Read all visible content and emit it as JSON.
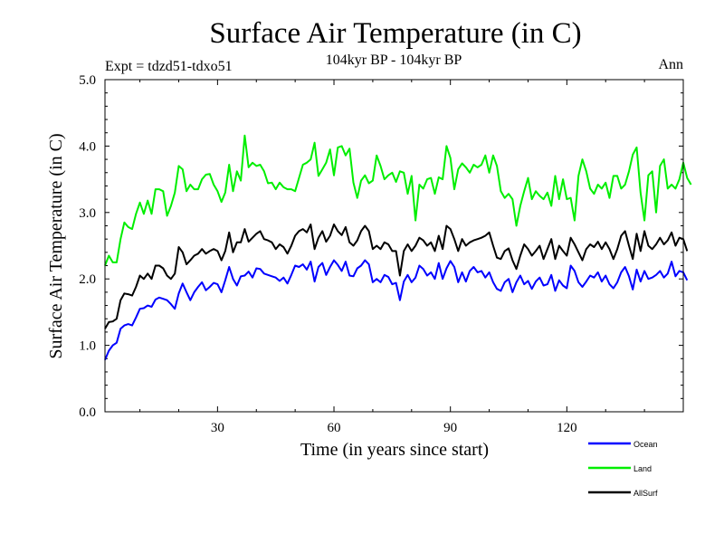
{
  "chart_data": {
    "type": "line",
    "title": "Surface Air Temperature (in C)",
    "subtitle": "104kyr BP - 104kyr BP",
    "experiment": "Expt = tdzd51-tdxo51",
    "season": "Ann",
    "xlabel": "Time (in years since start)",
    "ylabel": "Surface Air Temperature (in C)",
    "xlim": [
      1,
      150
    ],
    "ylim": [
      0,
      5
    ],
    "xticks": [
      30,
      60,
      90,
      120
    ],
    "xtick_labels": [
      "30",
      "60",
      "90",
      "120"
    ],
    "yticks": [
      0,
      1,
      2,
      3,
      4,
      5
    ],
    "ytick_labels": [
      "0.0",
      "1.0",
      "2.0",
      "3.0",
      "4.0",
      "5.0"
    ],
    "grid": false,
    "legend_position": "bottom-right",
    "series": [
      {
        "name": "Ocean",
        "color": "#0000ff",
        "values": [
          0.78,
          0.92,
          1.0,
          1.04,
          1.25,
          1.3,
          1.32,
          1.3,
          1.42,
          1.55,
          1.56,
          1.6,
          1.58,
          1.69,
          1.72,
          1.7,
          1.68,
          1.62,
          1.55,
          1.78,
          1.93,
          1.8,
          1.68,
          1.8,
          1.88,
          1.95,
          1.83,
          1.88,
          1.94,
          1.92,
          1.8,
          1.98,
          2.18,
          2.0,
          1.9,
          2.04,
          2.05,
          2.11,
          2.02,
          2.16,
          2.15,
          2.08,
          2.06,
          2.04,
          2.02,
          1.97,
          2.02,
          1.93,
          2.06,
          2.2,
          2.18,
          2.22,
          2.14,
          2.26,
          1.96,
          2.18,
          2.24,
          2.06,
          2.18,
          2.28,
          2.21,
          2.12,
          2.26,
          2.05,
          2.04,
          2.16,
          2.2,
          2.28,
          2.22,
          1.95,
          2.0,
          1.95,
          2.06,
          2.03,
          1.92,
          1.94,
          1.68,
          1.96,
          2.06,
          1.95,
          2.02,
          2.2,
          2.15,
          2.05,
          2.1,
          2.0,
          2.24,
          2.0,
          2.16,
          2.27,
          2.18,
          1.95,
          2.1,
          1.96,
          2.12,
          2.18,
          2.1,
          2.12,
          2.02,
          2.1,
          1.95,
          1.85,
          1.82,
          1.95,
          2.0,
          1.8,
          1.95,
          2.05,
          1.92,
          1.97,
          1.85,
          1.96,
          2.02,
          1.9,
          1.92,
          2.06,
          1.82,
          1.98,
          1.9,
          1.86,
          2.2,
          2.12,
          1.95,
          1.88,
          1.96,
          2.05,
          2.02,
          2.1,
          1.96,
          2.05,
          1.92,
          1.86,
          1.95,
          2.1,
          2.18,
          2.04,
          1.84,
          2.14,
          1.96,
          2.12,
          2.0,
          2.02,
          2.06,
          2.12,
          2.02,
          2.08,
          2.26,
          2.04,
          2.12,
          2.1,
          1.98
        ]
      },
      {
        "name": "Land",
        "color": "#00ee00",
        "values": [
          2.2,
          2.35,
          2.25,
          2.25,
          2.6,
          2.85,
          2.78,
          2.75,
          2.98,
          3.15,
          2.98,
          3.18,
          2.98,
          3.35,
          3.35,
          3.32,
          2.95,
          3.1,
          3.3,
          3.7,
          3.65,
          3.32,
          3.42,
          3.35,
          3.35,
          3.5,
          3.57,
          3.58,
          3.42,
          3.32,
          3.16,
          3.3,
          3.72,
          3.32,
          3.62,
          3.48,
          4.16,
          3.68,
          3.75,
          3.7,
          3.72,
          3.62,
          3.44,
          3.45,
          3.35,
          3.45,
          3.38,
          3.35,
          3.35,
          3.32,
          3.52,
          3.72,
          3.75,
          3.8,
          4.05,
          3.55,
          3.65,
          3.75,
          3.95,
          3.56,
          3.98,
          4.0,
          3.86,
          3.96,
          3.45,
          3.22,
          3.48,
          3.56,
          3.44,
          3.48,
          3.86,
          3.7,
          3.5,
          3.56,
          3.6,
          3.46,
          3.62,
          3.6,
          3.28,
          3.55,
          2.88,
          3.42,
          3.36,
          3.5,
          3.52,
          3.28,
          3.53,
          3.5,
          4.0,
          3.82,
          3.35,
          3.65,
          3.74,
          3.68,
          3.6,
          3.72,
          3.68,
          3.72,
          3.86,
          3.6,
          3.86,
          3.7,
          3.32,
          3.22,
          3.28,
          3.2,
          2.8,
          3.1,
          3.32,
          3.52,
          3.2,
          3.32,
          3.25,
          3.2,
          3.3,
          3.1,
          3.55,
          3.2,
          3.5,
          3.2,
          3.22,
          2.88,
          3.55,
          3.8,
          3.62,
          3.36,
          3.28,
          3.42,
          3.36,
          3.45,
          3.22,
          3.55,
          3.55,
          3.36,
          3.42,
          3.62,
          3.87,
          3.98,
          3.3,
          2.88,
          3.56,
          3.62,
          3.0,
          3.7,
          3.8,
          3.36,
          3.42,
          3.36,
          3.5,
          3.75,
          3.52,
          3.42
        ]
      },
      {
        "name": "AllSurf",
        "color": "#000000",
        "values": [
          1.25,
          1.35,
          1.36,
          1.4,
          1.68,
          1.78,
          1.77,
          1.75,
          1.88,
          2.05,
          2.0,
          2.08,
          2.0,
          2.2,
          2.2,
          2.16,
          2.05,
          2.0,
          2.08,
          2.48,
          2.4,
          2.22,
          2.28,
          2.35,
          2.38,
          2.45,
          2.38,
          2.42,
          2.45,
          2.42,
          2.28,
          2.42,
          2.7,
          2.4,
          2.55,
          2.55,
          2.75,
          2.56,
          2.62,
          2.68,
          2.72,
          2.6,
          2.58,
          2.55,
          2.45,
          2.52,
          2.48,
          2.38,
          2.5,
          2.65,
          2.72,
          2.75,
          2.7,
          2.82,
          2.45,
          2.62,
          2.72,
          2.56,
          2.65,
          2.82,
          2.72,
          2.66,
          2.78,
          2.55,
          2.5,
          2.58,
          2.72,
          2.8,
          2.72,
          2.45,
          2.5,
          2.45,
          2.55,
          2.52,
          2.42,
          2.42,
          2.05,
          2.42,
          2.52,
          2.42,
          2.5,
          2.62,
          2.58,
          2.5,
          2.55,
          2.42,
          2.65,
          2.45,
          2.8,
          2.75,
          2.6,
          2.42,
          2.6,
          2.5,
          2.55,
          2.58,
          2.6,
          2.62,
          2.65,
          2.7,
          2.5,
          2.32,
          2.3,
          2.42,
          2.46,
          2.28,
          2.15,
          2.35,
          2.52,
          2.45,
          2.35,
          2.42,
          2.5,
          2.3,
          2.45,
          2.6,
          2.3,
          2.5,
          2.42,
          2.35,
          2.62,
          2.52,
          2.4,
          2.28,
          2.45,
          2.52,
          2.48,
          2.56,
          2.45,
          2.55,
          2.45,
          2.3,
          2.45,
          2.65,
          2.72,
          2.5,
          2.3,
          2.68,
          2.42,
          2.72,
          2.5,
          2.45,
          2.52,
          2.62,
          2.52,
          2.58,
          2.7,
          2.5,
          2.62,
          2.6,
          2.42
        ]
      }
    ]
  }
}
